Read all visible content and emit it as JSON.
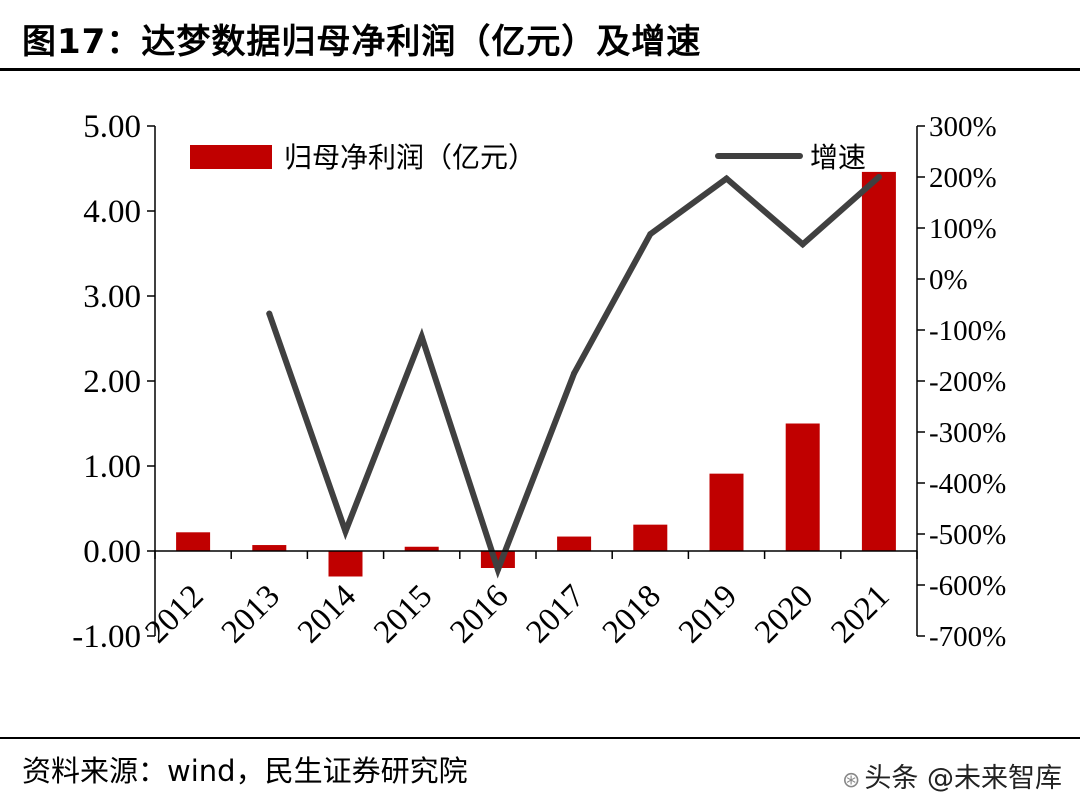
{
  "header": {
    "title": "图17：达梦数据归母净利润（亿元）及增速"
  },
  "footer": {
    "source": "资料来源：wind，民生证券研究院",
    "watermark": "头条 @未来智库"
  },
  "colors": {
    "bar": "#c00000",
    "line": "#404040",
    "axis": "#000000"
  },
  "chart_data": {
    "type": "bar",
    "categories": [
      "2012",
      "2013",
      "2014",
      "2015",
      "2016",
      "2017",
      "2018",
      "2019",
      "2020",
      "2021"
    ],
    "series": [
      {
        "name": "归母净利润（亿元）",
        "type": "bar",
        "axis": "left",
        "values": [
          0.22,
          0.07,
          -0.3,
          0.05,
          -0.2,
          0.17,
          0.31,
          0.91,
          1.5,
          4.46
        ]
      },
      {
        "name": "增速",
        "type": "line",
        "axis": "right",
        "values": [
          null,
          -68,
          -495,
          -113,
          -570,
          -185,
          88,
          197,
          68,
          200
        ]
      }
    ],
    "y_left": {
      "ticks": [
        "5.00",
        "4.00",
        "3.00",
        "2.00",
        "1.00",
        "0.00",
        "-1.00"
      ],
      "ylim": [
        -1.0,
        5.0
      ]
    },
    "y_right": {
      "ticks": [
        "300%",
        "200%",
        "100%",
        "0%",
        "-100%",
        "-200%",
        "-300%",
        "-400%",
        "-500%",
        "-600%",
        "-700%"
      ],
      "ylim": [
        -700,
        300
      ]
    },
    "legend_position": "top",
    "grid": false
  }
}
